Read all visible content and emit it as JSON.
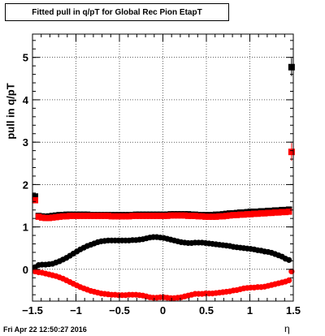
{
  "title": "Fitted pull in q/pT for Global Rec Pion EtapT",
  "footer": "Fri Apr 22 12:50:27 2016",
  "chart_data": {
    "type": "scatter",
    "title": "Fitted pull in q/pT for Global Rec Pion EtapT",
    "xlabel": "η",
    "ylabel": "pull in q/pT",
    "xlim": [
      -1.5,
      1.5
    ],
    "ylim": [
      -0.75,
      5.55
    ],
    "xticks": [
      -1.5,
      -1,
      -0.5,
      0,
      0.5,
      1,
      1.5
    ],
    "xtick_labels": [
      "−1.5",
      "−1",
      "−0.5",
      "0",
      "0.5",
      "1",
      "1.5"
    ],
    "yticks": [
      0,
      1,
      2,
      3,
      4,
      5
    ],
    "ytick_labels": [
      "0",
      "1",
      "2",
      "3",
      "4",
      "5"
    ],
    "grid": true,
    "legend": "none",
    "series": [
      {
        "color": "#000000",
        "marker": "circle",
        "x": [
          -1.47,
          -1.43,
          -1.39,
          -1.35,
          -1.31,
          -1.27,
          -1.23,
          -1.19,
          -1.15,
          -1.11,
          -1.07,
          -1.03,
          -0.99,
          -0.95,
          -0.91,
          -0.87,
          -0.83,
          -0.79,
          -0.75,
          -0.71,
          -0.67,
          -0.63,
          -0.59,
          -0.55,
          -0.51,
          -0.47,
          -0.43,
          -0.39,
          -0.35,
          -0.31,
          -0.27,
          -0.23,
          -0.19,
          -0.15,
          -0.11,
          -0.07,
          -0.03,
          0.01,
          0.05,
          0.09,
          0.13,
          0.17,
          0.21,
          0.25,
          0.29,
          0.33,
          0.37,
          0.41,
          0.45,
          0.49,
          0.53,
          0.57,
          0.61,
          0.65,
          0.69,
          0.73,
          0.77,
          0.81,
          0.85,
          0.89,
          0.93,
          0.97,
          1.01,
          1.05,
          1.09,
          1.13,
          1.17,
          1.21,
          1.25,
          1.29,
          1.33,
          1.37,
          1.41,
          1.45
        ],
        "y": [
          0.05,
          0.1,
          0.11,
          0.11,
          0.12,
          0.13,
          0.16,
          0.19,
          0.23,
          0.27,
          0.32,
          0.37,
          0.42,
          0.47,
          0.51,
          0.55,
          0.58,
          0.61,
          0.64,
          0.66,
          0.67,
          0.68,
          0.68,
          0.68,
          0.68,
          0.68,
          0.68,
          0.68,
          0.69,
          0.69,
          0.7,
          0.71,
          0.73,
          0.75,
          0.76,
          0.76,
          0.75,
          0.74,
          0.72,
          0.7,
          0.68,
          0.66,
          0.64,
          0.63,
          0.62,
          0.62,
          0.63,
          0.63,
          0.63,
          0.62,
          0.61,
          0.6,
          0.59,
          0.58,
          0.57,
          0.56,
          0.55,
          0.53,
          0.52,
          0.51,
          0.5,
          0.49,
          0.48,
          0.47,
          0.45,
          0.44,
          0.42,
          0.41,
          0.39,
          0.36,
          0.33,
          0.3,
          0.25,
          0.22
        ]
      },
      {
        "color": "#000000",
        "marker": "square",
        "x": [
          -1.47,
          -1.43,
          -1.39,
          -1.35,
          -1.31,
          -1.27,
          -1.23,
          -1.19,
          -1.15,
          -1.11,
          -1.07,
          -1.03,
          -0.99,
          -0.95,
          -0.91,
          -0.87,
          -0.83,
          -0.79,
          -0.75,
          -0.71,
          -0.67,
          -0.63,
          -0.59,
          -0.55,
          -0.51,
          -0.47,
          -0.43,
          -0.39,
          -0.35,
          -0.31,
          -0.27,
          -0.23,
          -0.19,
          -0.15,
          -0.11,
          -0.07,
          -0.03,
          0.01,
          0.05,
          0.09,
          0.13,
          0.17,
          0.21,
          0.25,
          0.29,
          0.33,
          0.37,
          0.41,
          0.45,
          0.49,
          0.53,
          0.57,
          0.61,
          0.65,
          0.69,
          0.73,
          0.77,
          0.81,
          0.85,
          0.89,
          0.93,
          0.97,
          1.01,
          1.05,
          1.09,
          1.13,
          1.17,
          1.21,
          1.25,
          1.29,
          1.33,
          1.37,
          1.41,
          1.45,
          1.48
        ],
        "y": [
          1.72,
          1.26,
          1.25,
          1.24,
          1.25,
          1.26,
          1.27,
          1.28,
          1.28,
          1.29,
          1.29,
          1.29,
          1.29,
          1.29,
          1.29,
          1.29,
          1.28,
          1.28,
          1.28,
          1.28,
          1.28,
          1.28,
          1.28,
          1.28,
          1.28,
          1.28,
          1.28,
          1.28,
          1.28,
          1.29,
          1.29,
          1.29,
          1.29,
          1.29,
          1.29,
          1.29,
          1.29,
          1.29,
          1.29,
          1.3,
          1.3,
          1.3,
          1.3,
          1.3,
          1.3,
          1.29,
          1.29,
          1.28,
          1.28,
          1.28,
          1.28,
          1.28,
          1.29,
          1.29,
          1.3,
          1.31,
          1.32,
          1.32,
          1.33,
          1.34,
          1.34,
          1.35,
          1.36,
          1.36,
          1.36,
          1.37,
          1.37,
          1.38,
          1.38,
          1.39,
          1.39,
          1.4,
          1.4,
          1.41,
          4.77
        ]
      },
      {
        "color": "#ff0000",
        "marker": "circle",
        "x": [
          -1.47,
          -1.43,
          -1.39,
          -1.35,
          -1.31,
          -1.27,
          -1.23,
          -1.19,
          -1.15,
          -1.11,
          -1.07,
          -1.03,
          -0.99,
          -0.95,
          -0.91,
          -0.87,
          -0.83,
          -0.79,
          -0.75,
          -0.71,
          -0.67,
          -0.63,
          -0.59,
          -0.55,
          -0.51,
          -0.47,
          -0.43,
          -0.39,
          -0.35,
          -0.31,
          -0.27,
          -0.23,
          -0.19,
          -0.15,
          -0.11,
          -0.07,
          -0.03,
          0.01,
          0.05,
          0.09,
          0.13,
          0.17,
          0.21,
          0.25,
          0.29,
          0.33,
          0.37,
          0.41,
          0.45,
          0.49,
          0.53,
          0.57,
          0.61,
          0.65,
          0.69,
          0.73,
          0.77,
          0.81,
          0.85,
          0.89,
          0.93,
          0.97,
          1.01,
          1.05,
          1.09,
          1.13,
          1.17,
          1.21,
          1.25,
          1.29,
          1.33,
          1.37,
          1.41,
          1.45,
          1.48
        ],
        "y": [
          -0.05,
          -0.07,
          -0.08,
          -0.1,
          -0.12,
          -0.14,
          -0.16,
          -0.19,
          -0.22,
          -0.26,
          -0.3,
          -0.34,
          -0.38,
          -0.42,
          -0.45,
          -0.48,
          -0.51,
          -0.53,
          -0.55,
          -0.57,
          -0.58,
          -0.59,
          -0.6,
          -0.6,
          -0.61,
          -0.61,
          -0.61,
          -0.6,
          -0.6,
          -0.6,
          -0.61,
          -0.62,
          -0.64,
          -0.66,
          -0.67,
          -0.67,
          -0.66,
          -0.66,
          -0.67,
          -0.68,
          -0.68,
          -0.67,
          -0.66,
          -0.64,
          -0.62,
          -0.6,
          -0.58,
          -0.58,
          -0.58,
          -0.57,
          -0.57,
          -0.57,
          -0.56,
          -0.55,
          -0.54,
          -0.53,
          -0.52,
          -0.5,
          -0.49,
          -0.47,
          -0.45,
          -0.44,
          -0.43,
          -0.43,
          -0.42,
          -0.42,
          -0.41,
          -0.39,
          -0.37,
          -0.35,
          -0.33,
          -0.31,
          -0.29,
          -0.26,
          -0.05
        ]
      },
      {
        "color": "#ff0000",
        "marker": "square",
        "x": [
          -1.47,
          -1.43,
          -1.39,
          -1.35,
          -1.31,
          -1.27,
          -1.23,
          -1.19,
          -1.15,
          -1.11,
          -1.07,
          -1.03,
          -0.99,
          -0.95,
          -0.91,
          -0.87,
          -0.83,
          -0.79,
          -0.75,
          -0.71,
          -0.67,
          -0.63,
          -0.59,
          -0.55,
          -0.51,
          -0.47,
          -0.43,
          -0.39,
          -0.35,
          -0.31,
          -0.27,
          -0.23,
          -0.19,
          -0.15,
          -0.11,
          -0.07,
          -0.03,
          0.01,
          0.05,
          0.09,
          0.13,
          0.17,
          0.21,
          0.25,
          0.29,
          0.33,
          0.37,
          0.41,
          0.45,
          0.49,
          0.53,
          0.57,
          0.61,
          0.65,
          0.69,
          0.73,
          0.77,
          0.81,
          0.85,
          0.89,
          0.93,
          0.97,
          1.01,
          1.05,
          1.09,
          1.13,
          1.17,
          1.21,
          1.25,
          1.29,
          1.33,
          1.37,
          1.41,
          1.45,
          1.48
        ],
        "y": [
          1.63,
          1.24,
          1.22,
          1.21,
          1.21,
          1.22,
          1.23,
          1.24,
          1.25,
          1.25,
          1.26,
          1.26,
          1.26,
          1.26,
          1.26,
          1.26,
          1.26,
          1.26,
          1.26,
          1.26,
          1.26,
          1.26,
          1.25,
          1.25,
          1.25,
          1.25,
          1.25,
          1.25,
          1.26,
          1.26,
          1.26,
          1.26,
          1.26,
          1.26,
          1.26,
          1.26,
          1.26,
          1.26,
          1.26,
          1.27,
          1.27,
          1.27,
          1.27,
          1.27,
          1.26,
          1.26,
          1.26,
          1.25,
          1.25,
          1.24,
          1.24,
          1.24,
          1.24,
          1.25,
          1.25,
          1.26,
          1.27,
          1.28,
          1.28,
          1.29,
          1.29,
          1.3,
          1.3,
          1.31,
          1.31,
          1.32,
          1.32,
          1.33,
          1.33,
          1.34,
          1.34,
          1.35,
          1.35,
          1.36,
          2.77
        ]
      }
    ]
  }
}
